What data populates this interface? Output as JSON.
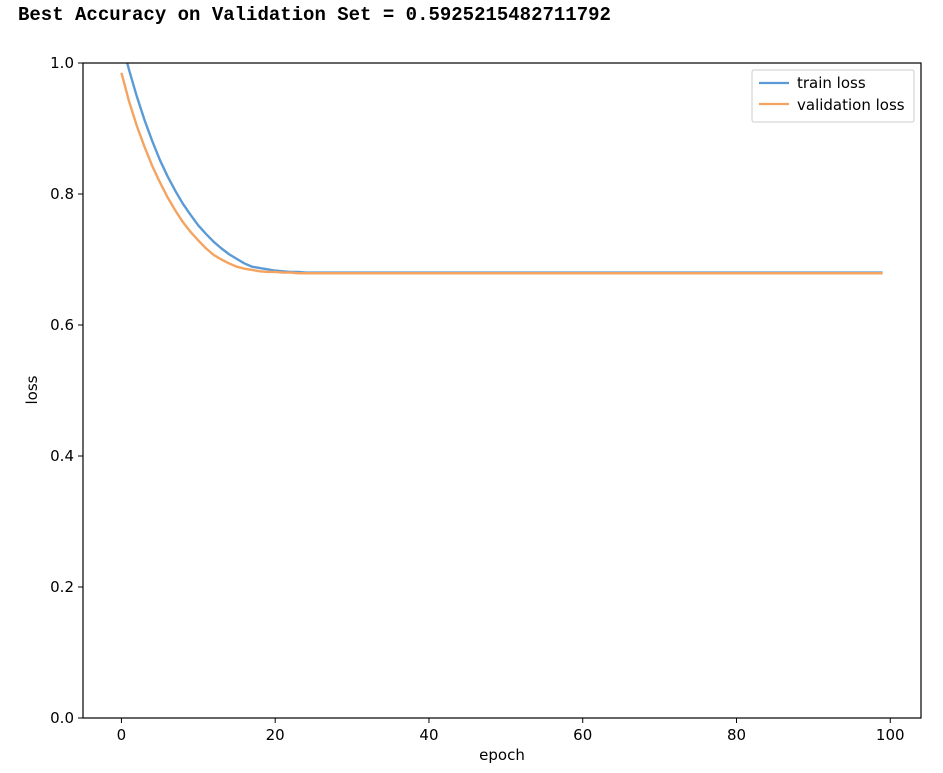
{
  "header": {
    "text": "Best Accuracy on Validation Set = 0.5925215482711792"
  },
  "chart_data": {
    "type": "line",
    "title": "",
    "xlabel": "epoch",
    "ylabel": "loss",
    "xlim": [
      -5,
      104
    ],
    "ylim": [
      0.0,
      1.0
    ],
    "xticks": [
      0,
      20,
      40,
      60,
      80,
      100
    ],
    "xtick_labels": [
      "0",
      "20",
      "40",
      "60",
      "80",
      "100"
    ],
    "yticks": [
      0.0,
      0.2,
      0.4,
      0.6,
      0.8,
      1.0
    ],
    "ytick_labels": [
      "0.0",
      "0.2",
      "0.4",
      "0.6",
      "0.8",
      "1.0"
    ],
    "grid": false,
    "legend": "top-right",
    "x": [
      0,
      1,
      2,
      3,
      4,
      5,
      6,
      7,
      8,
      9,
      10,
      11,
      12,
      13,
      14,
      15,
      16,
      17,
      18,
      19,
      20,
      21,
      22,
      23,
      24,
      25,
      26,
      27,
      28,
      29,
      30,
      31,
      32,
      33,
      34,
      35,
      36,
      37,
      38,
      39,
      40,
      41,
      42,
      43,
      44,
      45,
      46,
      47,
      48,
      49,
      50,
      51,
      52,
      53,
      54,
      55,
      56,
      57,
      58,
      59,
      60,
      61,
      62,
      63,
      64,
      65,
      66,
      67,
      68,
      69,
      70,
      71,
      72,
      73,
      74,
      75,
      76,
      77,
      78,
      79,
      80,
      81,
      82,
      83,
      84,
      85,
      86,
      87,
      88,
      89,
      90,
      91,
      92,
      93,
      94,
      95,
      96,
      97,
      98,
      99
    ],
    "series": [
      {
        "name": "train loss",
        "color": "#5b9bd5",
        "values": [
          1.034,
          0.989,
          0.949,
          0.913,
          0.881,
          0.852,
          0.827,
          0.805,
          0.785,
          0.768,
          0.752,
          0.739,
          0.727,
          0.717,
          0.708,
          0.701,
          0.694,
          0.689,
          0.687,
          0.685,
          0.683,
          0.682,
          0.681,
          0.681,
          0.68,
          0.68,
          0.68,
          0.68,
          0.68,
          0.68,
          0.68,
          0.68,
          0.68,
          0.68,
          0.68,
          0.68,
          0.68,
          0.68,
          0.68,
          0.68,
          0.68,
          0.68,
          0.68,
          0.68,
          0.68,
          0.68,
          0.68,
          0.68,
          0.68,
          0.68,
          0.68,
          0.68,
          0.68,
          0.68,
          0.68,
          0.68,
          0.68,
          0.68,
          0.68,
          0.68,
          0.68,
          0.68,
          0.68,
          0.68,
          0.68,
          0.68,
          0.68,
          0.68,
          0.68,
          0.68,
          0.68,
          0.68,
          0.68,
          0.68,
          0.68,
          0.68,
          0.68,
          0.68,
          0.68,
          0.68,
          0.68,
          0.68,
          0.68,
          0.68,
          0.68,
          0.68,
          0.68,
          0.68,
          0.68,
          0.68,
          0.68,
          0.68,
          0.68,
          0.68,
          0.68,
          0.68,
          0.68,
          0.68,
          0.68,
          0.68
        ]
      },
      {
        "name": "validation loss",
        "color": "#f4a460",
        "values": [
          0.985,
          0.941,
          0.904,
          0.872,
          0.843,
          0.818,
          0.795,
          0.775,
          0.757,
          0.742,
          0.729,
          0.717,
          0.707,
          0.7,
          0.694,
          0.689,
          0.686,
          0.684,
          0.682,
          0.681,
          0.681,
          0.68,
          0.68,
          0.679,
          0.679,
          0.679,
          0.679,
          0.679,
          0.679,
          0.679,
          0.679,
          0.679,
          0.679,
          0.679,
          0.679,
          0.679,
          0.679,
          0.679,
          0.679,
          0.679,
          0.679,
          0.679,
          0.679,
          0.679,
          0.679,
          0.679,
          0.679,
          0.679,
          0.679,
          0.679,
          0.679,
          0.679,
          0.679,
          0.679,
          0.679,
          0.679,
          0.679,
          0.679,
          0.679,
          0.679,
          0.679,
          0.679,
          0.679,
          0.679,
          0.679,
          0.679,
          0.679,
          0.679,
          0.679,
          0.679,
          0.679,
          0.679,
          0.679,
          0.679,
          0.679,
          0.679,
          0.679,
          0.679,
          0.679,
          0.679,
          0.679,
          0.679,
          0.679,
          0.679,
          0.679,
          0.679,
          0.679,
          0.679,
          0.679,
          0.679,
          0.679,
          0.679,
          0.679,
          0.679,
          0.679,
          0.679,
          0.679,
          0.679,
          0.679,
          0.679
        ]
      }
    ]
  }
}
